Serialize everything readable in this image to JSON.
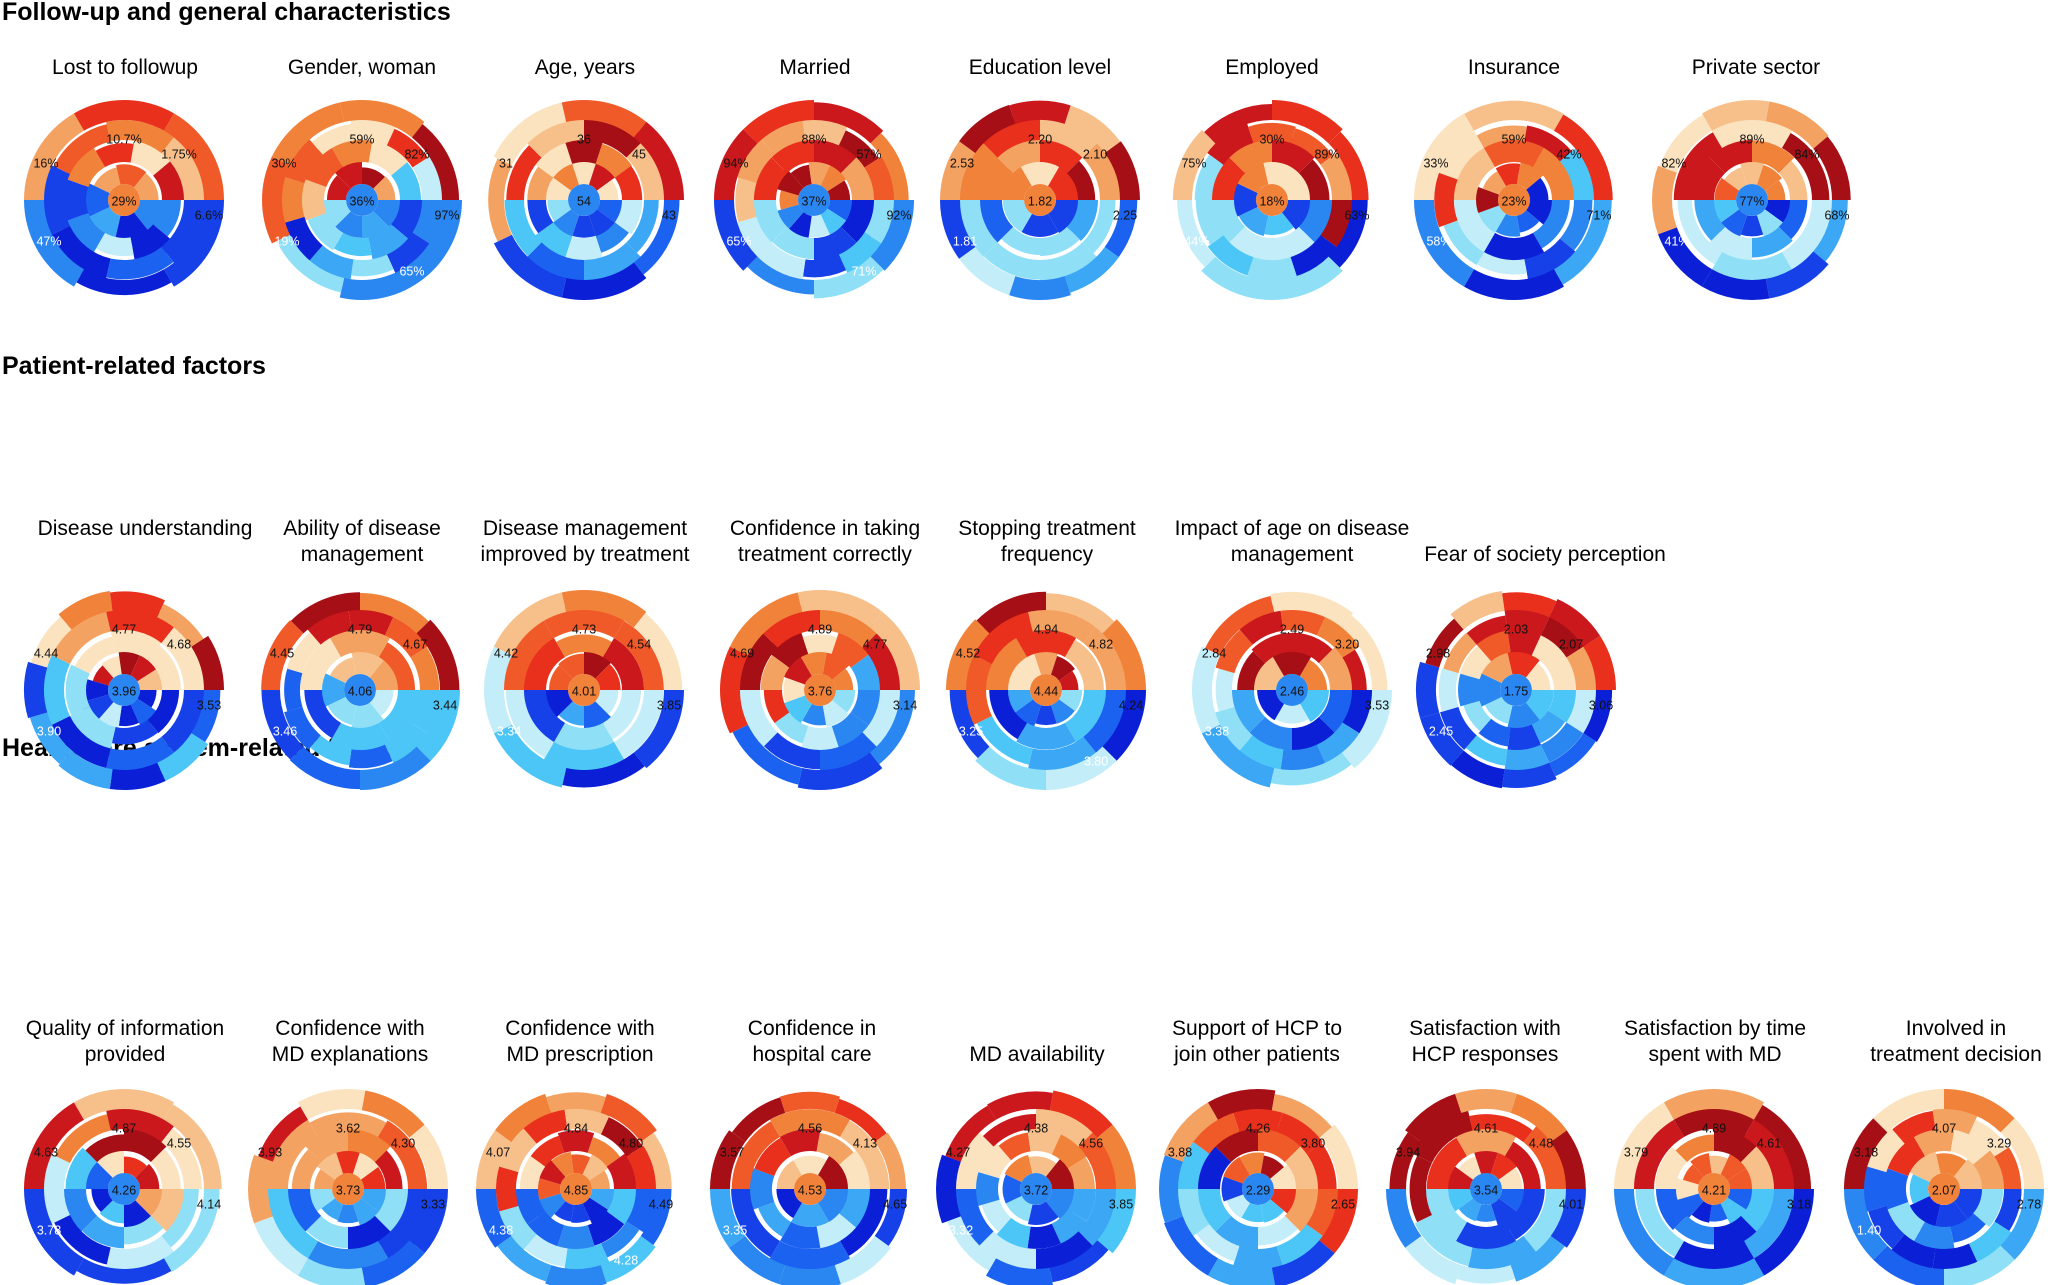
{
  "sections": [
    {
      "title": "Follow-up and general characteristics",
      "charts": [
        {
          "title": "Lost to followup",
          "labels": [
            "10.7%",
            "1.75%",
            "16%",
            "29%",
            "6.6%",
            "47%"
          ]
        },
        {
          "title": "Gender, woman",
          "labels": [
            "59%",
            "82%",
            "30%",
            "36%",
            "97%",
            "19%",
            "65%"
          ]
        },
        {
          "title": "Age, years",
          "labels": [
            "36",
            "45",
            "31",
            "54",
            "43"
          ]
        },
        {
          "title": "Married",
          "labels": [
            "88%",
            "57%",
            "94%",
            "37%",
            "92%",
            "65%",
            "71%"
          ]
        },
        {
          "title": "Education level",
          "labels": [
            "2.20",
            "2.10",
            "2.53",
            "1.82",
            "2.25",
            "1.81"
          ]
        },
        {
          "title": "Employed",
          "labels": [
            "30%",
            "89%",
            "75%",
            "18%",
            "63%",
            "44%"
          ]
        },
        {
          "title": "Insurance",
          "labels": [
            "59%",
            "42%",
            "33%",
            "23%",
            "71%",
            "58%"
          ]
        },
        {
          "title": "Private sector",
          "labels": [
            "89%",
            "84%",
            "82%",
            "77%",
            "68%",
            "41%"
          ]
        }
      ]
    },
    {
      "title": "Patient-related factors",
      "charts": [
        {
          "title": "Disease understanding",
          "labels": [
            "4.77",
            "4.68",
            "4.44",
            "3.96",
            "3.53",
            "3.90"
          ]
        },
        {
          "title": "Ability of disease\nmanagement",
          "labels": [
            "4.79",
            "4.67",
            "4.45",
            "4.06",
            "3.44",
            "3.46"
          ]
        },
        {
          "title": "Disease management\nimproved by treatment",
          "labels": [
            "4.73",
            "4.54",
            "4.42",
            "4.01",
            "3.85",
            "3.34"
          ]
        },
        {
          "title": "Confidence in taking\ntreatment correctly",
          "labels": [
            "4.89",
            "4.77",
            "4.69",
            "3.76",
            "3.14"
          ]
        },
        {
          "title": "Stopping treatment\nfrequency",
          "labels": [
            "4.94",
            "4.82",
            "4.52",
            "4.44",
            "4.24",
            "3.25",
            "3.80"
          ]
        },
        {
          "title": "Impact of age on disease\nmanagement",
          "labels": [
            "2.49",
            "3.20",
            "2.84",
            "2.46",
            "3.53",
            "3.38"
          ]
        },
        {
          "title": "Fear of society perception",
          "labels": [
            "2.03",
            "2.07",
            "2.98",
            "1.75",
            "3.06",
            "2.45"
          ]
        }
      ]
    },
    {
      "title": "Health care system-related factors",
      "charts": [
        {
          "title": "Quality of information\nprovided",
          "labels": [
            "4.87",
            "4.55",
            "4.63",
            "4.26",
            "4.14",
            "3.78"
          ]
        },
        {
          "title": "Confidence with\nMD explanations",
          "labels": [
            "3.62",
            "4.30",
            "3.93",
            "3.73",
            "3.33"
          ]
        },
        {
          "title": "Confidence with\nMD prescription",
          "labels": [
            "4.84",
            "4.80",
            "4.07",
            "4.85",
            "4.49",
            "4.38",
            "4.28"
          ]
        },
        {
          "title": "Confidence in\nhospital care",
          "labels": [
            "4.56",
            "4.13",
            "3.57",
            "4.53",
            "4.65",
            "3.35"
          ]
        },
        {
          "title": "MD availability",
          "labels": [
            "4.38",
            "4.56",
            "4.27",
            "3.72",
            "3.85",
            "3.32"
          ]
        },
        {
          "title": "Support of HCP to\njoin other patients",
          "labels": [
            "4.26",
            "3.80",
            "3.88",
            "2.29",
            "2.65"
          ]
        },
        {
          "title": "Satisfaction with\nHCP responses",
          "labels": [
            "4.61",
            "4.48",
            "3.94",
            "3.54",
            "4.01"
          ]
        },
        {
          "title": "Satisfaction by time\nspent with MD",
          "labels": [
            "4.89",
            "4.61",
            "3.79",
            "4.21",
            "3.18"
          ]
        },
        {
          "title": "Involved in\ntreatment decision",
          "labels": [
            "4.07",
            "3.29",
            "3.18",
            "2.07",
            "2.78",
            "1.40"
          ]
        }
      ]
    }
  ],
  "chart_data": [
    {
      "type": "radial-sunburst",
      "title": "Lost to followup",
      "values": [
        "10.7%",
        "1.75%",
        "16%",
        "29%",
        "6.6%",
        "47%"
      ]
    },
    {
      "type": "radial-sunburst",
      "title": "Gender, woman",
      "values": [
        "59%",
        "82%",
        "30%",
        "36%",
        "97%",
        "19%",
        "65%"
      ]
    },
    {
      "type": "radial-sunburst",
      "title": "Age, years",
      "values": [
        36,
        45,
        31,
        54,
        43
      ]
    },
    {
      "type": "radial-sunburst",
      "title": "Married",
      "values": [
        "88%",
        "57%",
        "94%",
        "37%",
        "92%",
        "65%",
        "71%"
      ]
    },
    {
      "type": "radial-sunburst",
      "title": "Education level",
      "values": [
        2.2,
        2.1,
        2.53,
        1.82,
        2.25,
        1.81
      ]
    },
    {
      "type": "radial-sunburst",
      "title": "Employed",
      "values": [
        "30%",
        "89%",
        "75%",
        "18%",
        "63%",
        "44%"
      ]
    },
    {
      "type": "radial-sunburst",
      "title": "Insurance",
      "values": [
        "59%",
        "42%",
        "33%",
        "23%",
        "71%",
        "58%"
      ]
    },
    {
      "type": "radial-sunburst",
      "title": "Private sector",
      "values": [
        "89%",
        "84%",
        "82%",
        "77%",
        "68%",
        "41%"
      ]
    },
    {
      "type": "radial-sunburst",
      "title": "Disease understanding",
      "values": [
        4.77,
        4.68,
        4.44,
        3.96,
        3.53,
        3.9
      ]
    },
    {
      "type": "radial-sunburst",
      "title": "Ability of disease management",
      "values": [
        4.79,
        4.67,
        4.45,
        4.06,
        3.44,
        3.46
      ]
    },
    {
      "type": "radial-sunburst",
      "title": "Disease management improved by treatment",
      "values": [
        4.73,
        4.54,
        4.42,
        4.01,
        3.85,
        3.34
      ]
    },
    {
      "type": "radial-sunburst",
      "title": "Confidence in taking treatment correctly",
      "values": [
        4.89,
        4.77,
        4.69,
        3.76,
        3.14
      ]
    },
    {
      "type": "radial-sunburst",
      "title": "Stopping treatment frequency",
      "values": [
        4.94,
        4.82,
        4.52,
        4.44,
        4.24,
        3.25,
        3.8
      ]
    },
    {
      "type": "radial-sunburst",
      "title": "Impact of age on disease management",
      "values": [
        2.49,
        3.2,
        2.84,
        2.46,
        3.53,
        3.38
      ]
    },
    {
      "type": "radial-sunburst",
      "title": "Fear of society perception",
      "values": [
        2.03,
        2.07,
        2.98,
        1.75,
        3.06,
        2.45
      ]
    },
    {
      "type": "radial-sunburst",
      "title": "Quality of information provided",
      "values": [
        4.87,
        4.55,
        4.63,
        4.26,
        4.14,
        3.78
      ]
    },
    {
      "type": "radial-sunburst",
      "title": "Confidence with MD explanations",
      "values": [
        3.62,
        4.3,
        3.93,
        3.73,
        3.33
      ]
    },
    {
      "type": "radial-sunburst",
      "title": "Confidence with MD prescription",
      "values": [
        4.84,
        4.8,
        4.07,
        4.85,
        4.49,
        4.38,
        4.28
      ]
    },
    {
      "type": "radial-sunburst",
      "title": "Confidence in hospital care",
      "values": [
        4.56,
        4.13,
        3.57,
        4.53,
        4.65,
        3.35
      ]
    },
    {
      "type": "radial-sunburst",
      "title": "MD availability",
      "values": [
        4.38,
        4.56,
        4.27,
        3.72,
        3.85,
        3.32
      ]
    },
    {
      "type": "radial-sunburst",
      "title": "Support of HCP to join other patients",
      "values": [
        4.26,
        3.8,
        3.88,
        2.29,
        2.65
      ]
    },
    {
      "type": "radial-sunburst",
      "title": "Satisfaction with HCP responses",
      "values": [
        4.61,
        4.48,
        3.94,
        3.54,
        4.01
      ]
    },
    {
      "type": "radial-sunburst",
      "title": "Satisfaction by time spent with MD",
      "values": [
        4.89,
        4.61,
        3.79,
        4.21,
        3.18
      ]
    },
    {
      "type": "radial-sunburst",
      "title": "Involved in treatment decision",
      "values": [
        4.07,
        3.29,
        3.18,
        2.07,
        2.78,
        1.4
      ]
    }
  ],
  "palette": {
    "warm": [
      "#a50f15",
      "#cb181d",
      "#e8301c",
      "#f05a28",
      "#f0823a",
      "#f4a261",
      "#f7c08a",
      "#fbe3c0",
      "#fdf3e1"
    ],
    "cool": [
      "#0a1fd6",
      "#1640e8",
      "#1c62f0",
      "#2a86f0",
      "#3ba7f5",
      "#4cc6f7",
      "#8fe0f7",
      "#c3eef9",
      "#eaf8fb"
    ]
  }
}
